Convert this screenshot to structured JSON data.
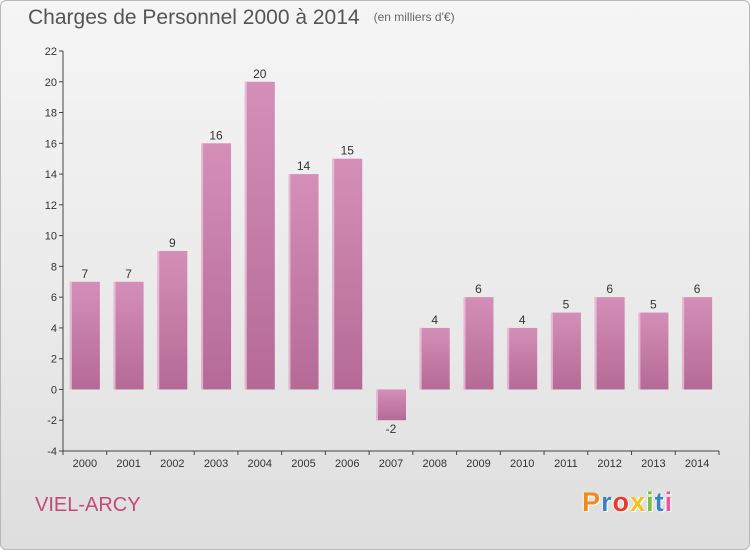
{
  "header": {
    "title": "Charges de Personnel 2000 à 2014",
    "subtitle": "(en milliers d'€)"
  },
  "footer": {
    "place": "VIEL-ARCY",
    "logo_text": "Proxiti",
    "logo_colors": [
      "#f08a1c",
      "#3b82c4",
      "#e63b2e",
      "#f2c21b",
      "#7bbf3a",
      "#3b82c4",
      "#e65aa0"
    ]
  },
  "chart_data": {
    "type": "bar",
    "categories": [
      "2000",
      "2001",
      "2002",
      "2003",
      "2004",
      "2005",
      "2006",
      "2007",
      "2008",
      "2009",
      "2010",
      "2011",
      "2012",
      "2013",
      "2014"
    ],
    "values": [
      7,
      7,
      9,
      16,
      20,
      14,
      15,
      -2,
      4,
      6,
      4,
      5,
      6,
      5,
      6
    ],
    "ylim": [
      -4,
      22
    ],
    "yticks": [
      -4,
      -2,
      0,
      2,
      4,
      6,
      8,
      10,
      12,
      14,
      16,
      18,
      20,
      22
    ],
    "grid": false,
    "bar_color": "#d48fb8",
    "bar_color_dark": "#b56a96",
    "axis_color": "#444444"
  }
}
